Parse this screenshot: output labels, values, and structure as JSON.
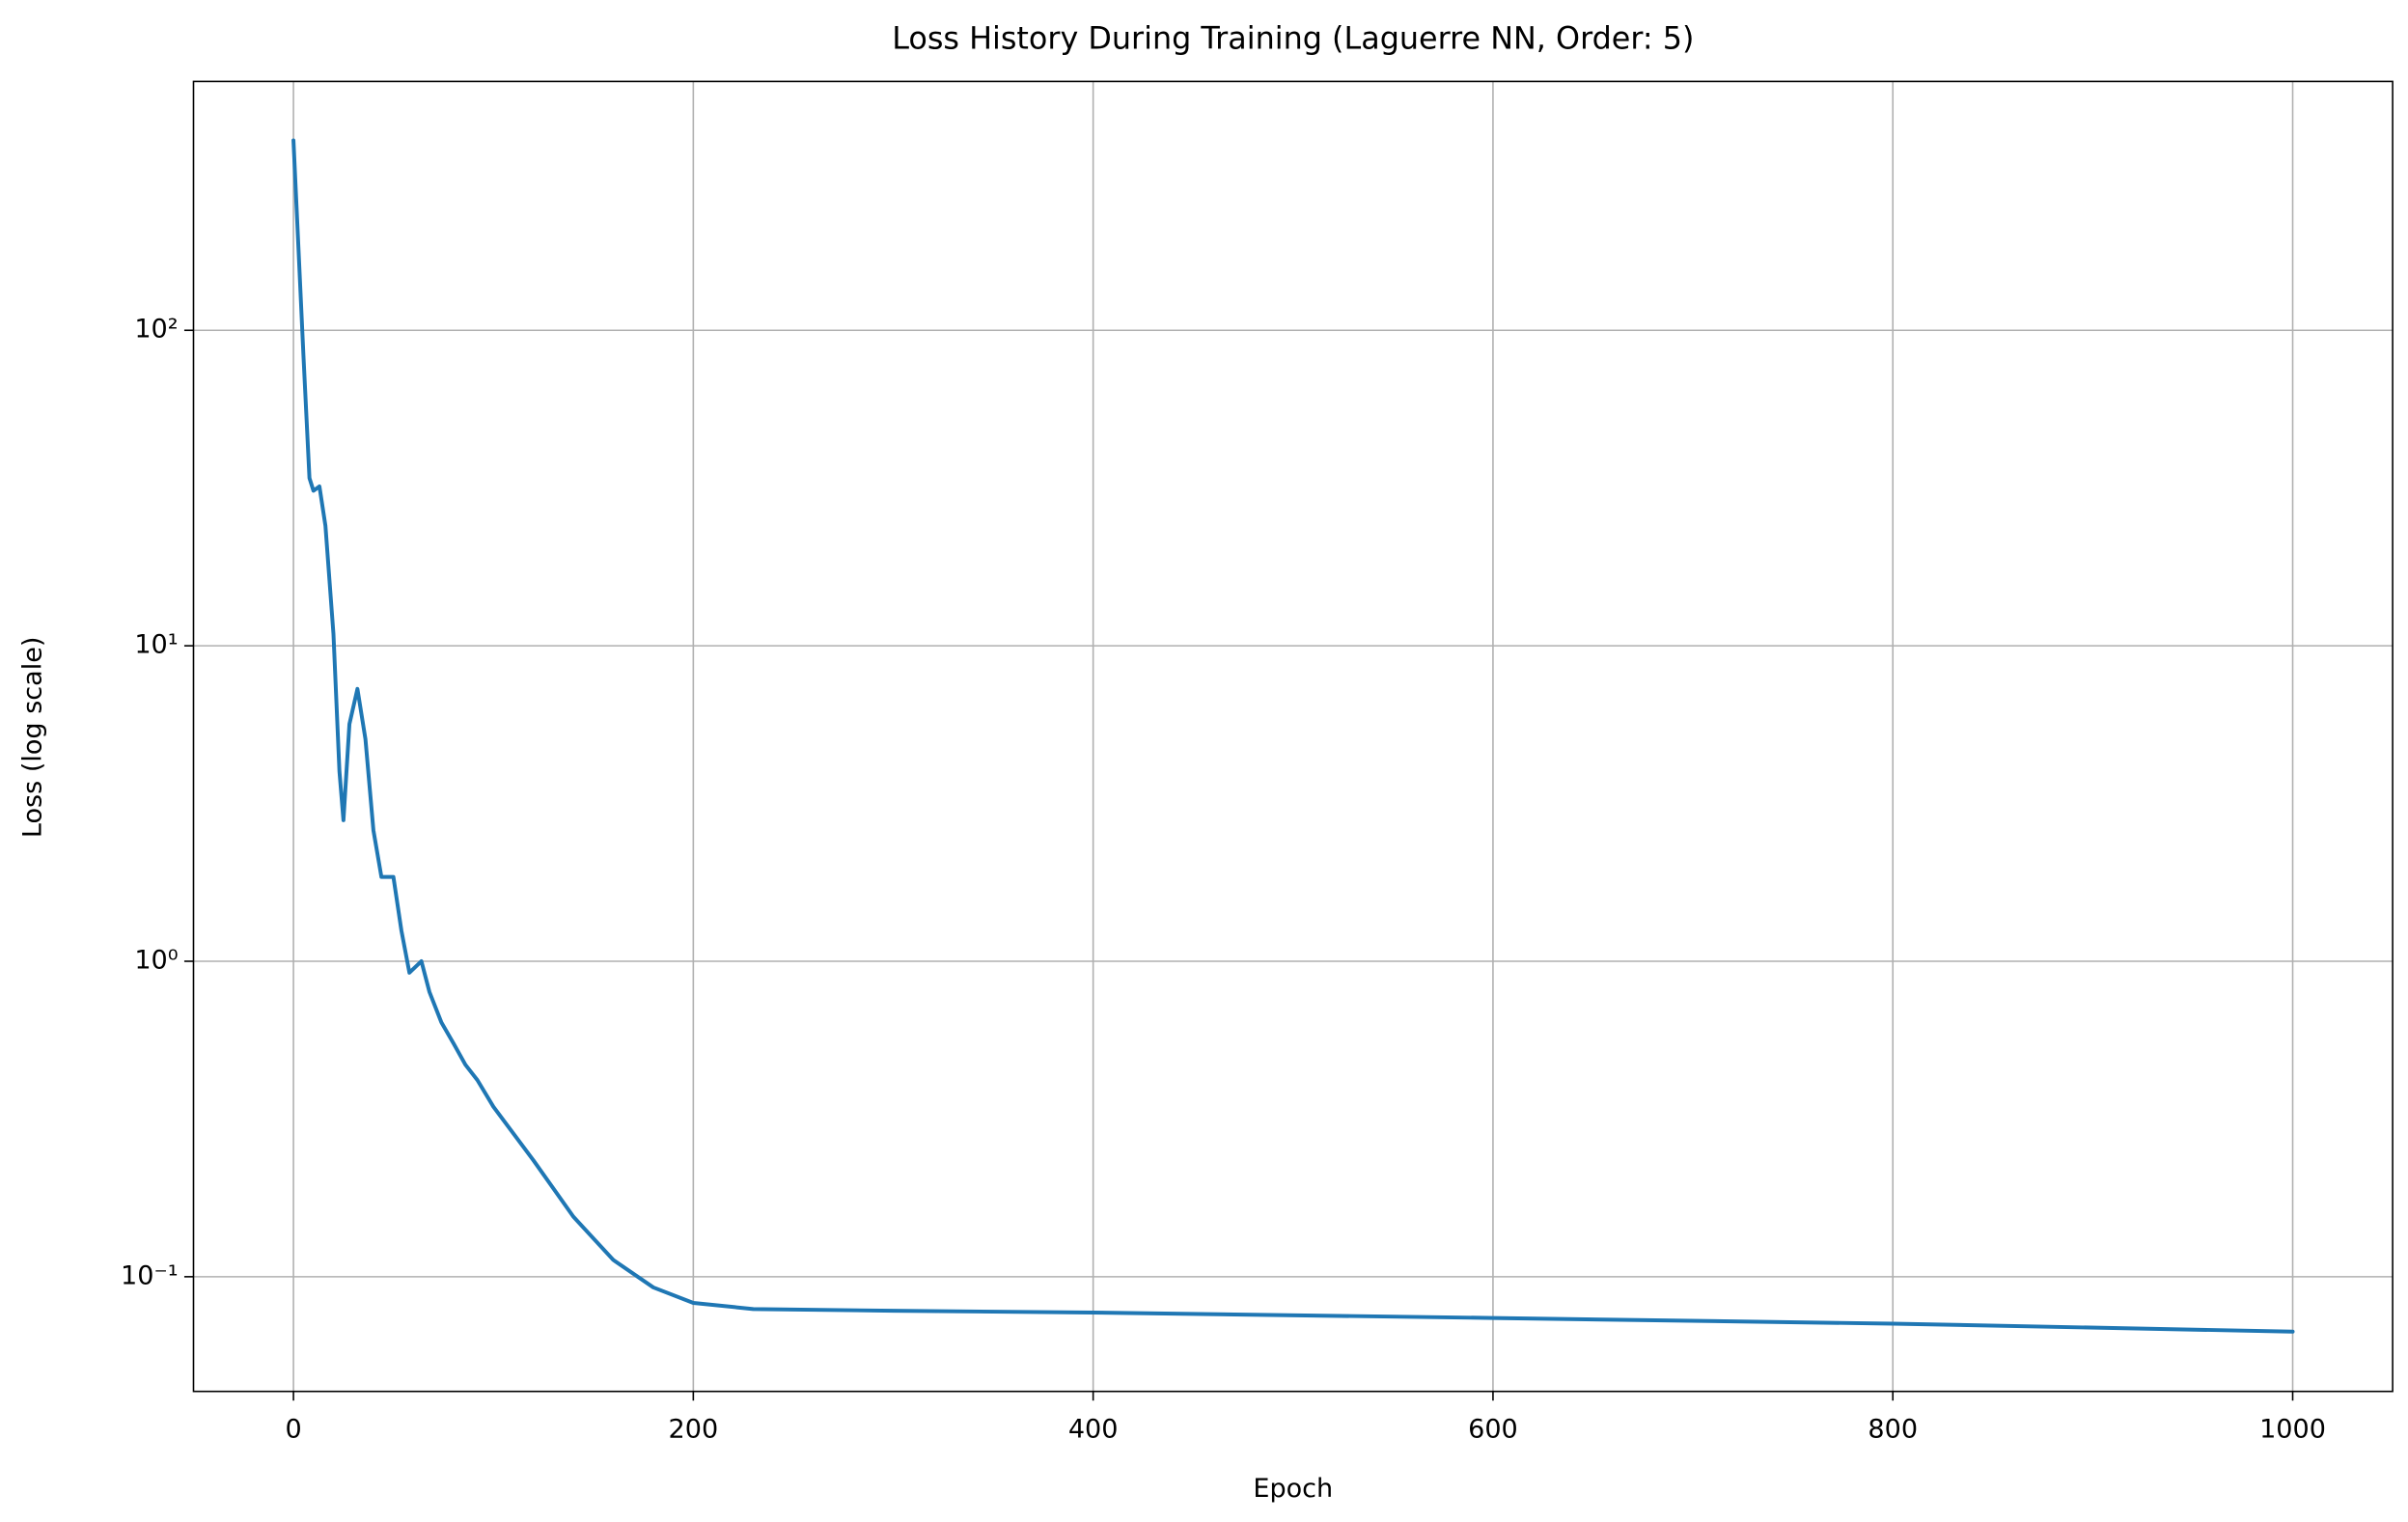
{
  "chart_data": {
    "type": "line",
    "title": "Loss History During Training (Laguerre NN, Order: 5)",
    "x_label": "Epoch",
    "y_label": "Loss (log scale)",
    "x": [
      0,
      5,
      8,
      10,
      13,
      16,
      20,
      23,
      25,
      28,
      32,
      36,
      40,
      44,
      50,
      54,
      58,
      64,
      68,
      74,
      80,
      86,
      92,
      100,
      120,
      140,
      160,
      180,
      200,
      230,
      300,
      400,
      600,
      800,
      1000
    ],
    "series": [
      {
        "name": "Loss",
        "color": "#1f77b4",
        "values": [
          400,
          83,
          34,
          31,
          32,
          24,
          10.9,
          4.0,
          2.8,
          5.65,
          7.3,
          5.06,
          2.6,
          1.85,
          1.85,
          1.25,
          0.92,
          1.0,
          0.8,
          0.64,
          0.55,
          0.47,
          0.42,
          0.346,
          0.234,
          0.155,
          0.113,
          0.0925,
          0.0826,
          0.079,
          0.078,
          0.077,
          0.074,
          0.071,
          0.067
        ]
      }
    ],
    "xlim": [
      -50,
      1050
    ],
    "ylim": [
      0.0433,
      615
    ],
    "xticks": [
      0,
      200,
      400,
      600,
      800,
      1000
    ],
    "yticks": [
      {
        "value": 0.1,
        "label": "10⁻¹"
      },
      {
        "value": 1,
        "label": "10⁰"
      },
      {
        "value": 10,
        "label": "10¹"
      },
      {
        "value": 100,
        "label": "10²"
      }
    ],
    "log_y": true,
    "grid": true
  }
}
